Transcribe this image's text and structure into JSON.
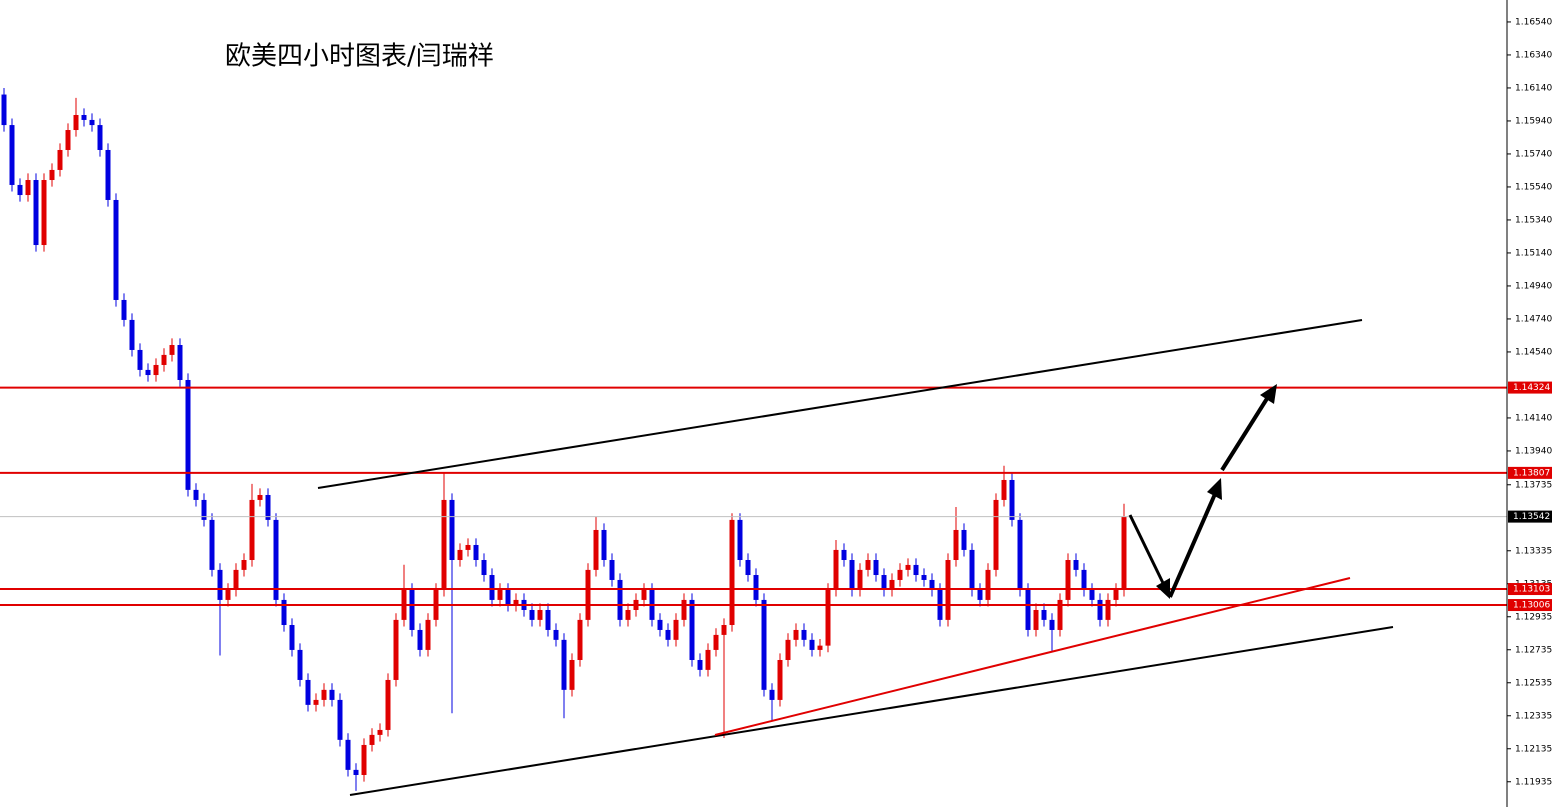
{
  "chart_data": {
    "type": "candlestick",
    "title": "欧美四小时图表/闫瑞祥",
    "ylim": [
      1.11782,
      1.16673
    ],
    "yticks": [
      {
        "value": 1.1654,
        "label": "1.16540"
      },
      {
        "value": 1.1634,
        "label": "1.16340"
      },
      {
        "value": 1.1614,
        "label": "1.16140"
      },
      {
        "value": 1.1594,
        "label": "1.15940"
      },
      {
        "value": 1.1574,
        "label": "1.15740"
      },
      {
        "value": 1.1554,
        "label": "1.15540"
      },
      {
        "value": 1.1534,
        "label": "1.15340"
      },
      {
        "value": 1.1514,
        "label": "1.15140"
      },
      {
        "value": 1.1494,
        "label": "1.14940"
      },
      {
        "value": 1.1474,
        "label": "1.14740"
      },
      {
        "value": 1.1454,
        "label": "1.14540"
      },
      {
        "value": 1.1414,
        "label": "1.14140"
      },
      {
        "value": 1.1394,
        "label": "1.13940"
      },
      {
        "value": 1.13735,
        "label": "1.13735"
      },
      {
        "value": 1.13335,
        "label": "1.13335"
      },
      {
        "value": 1.13135,
        "label": "1.13135"
      },
      {
        "value": 1.12935,
        "label": "1.12935"
      },
      {
        "value": 1.12735,
        "label": "1.12735"
      },
      {
        "value": 1.12535,
        "label": "1.12535"
      },
      {
        "value": 1.12335,
        "label": "1.12335"
      },
      {
        "value": 1.12135,
        "label": "1.12135"
      },
      {
        "value": 1.11935,
        "label": "1.11935"
      }
    ],
    "levels": [
      {
        "value": 1.14324,
        "label": "1.14324"
      },
      {
        "value": 1.13807,
        "label": "1.13807"
      },
      {
        "value": 1.13103,
        "label": "1.13103"
      },
      {
        "value": 1.13006,
        "label": "1.13006"
      }
    ],
    "level_color": "#e00000",
    "current_price": {
      "value": 1.13542,
      "label": "1.13542"
    },
    "series": [
      {
        "up_color": "#e00000",
        "down_color": "#0000e0",
        "candles": [
          [
            1.161,
            1.1614,
            1.15875,
            1.15915
          ],
          [
            1.15915,
            1.15955,
            1.15512,
            1.15552
          ],
          [
            1.15552,
            1.15592,
            1.15451,
            1.15491
          ],
          [
            1.15491,
            1.15622,
            1.15451,
            1.15582
          ],
          [
            1.15582,
            1.15622,
            1.15148,
            1.15188
          ],
          [
            1.15188,
            1.15622,
            1.15148,
            1.15582
          ],
          [
            1.15582,
            1.15683,
            1.15542,
            1.15643
          ],
          [
            1.15643,
            1.15804,
            1.15603,
            1.15764
          ],
          [
            1.15764,
            1.15925,
            1.15724,
            1.15885
          ],
          [
            1.15885,
            1.1608,
            1.15845,
            1.15976
          ],
          [
            1.15976,
            1.16016,
            1.15906,
            1.15946
          ],
          [
            1.15946,
            1.15986,
            1.15875,
            1.15915
          ],
          [
            1.15915,
            1.15955,
            1.15724,
            1.15764
          ],
          [
            1.15764,
            1.15804,
            1.15421,
            1.15461
          ],
          [
            1.15461,
            1.15501,
            1.14815,
            1.14855
          ],
          [
            1.14855,
            1.14895,
            1.14694,
            1.14734
          ],
          [
            1.14734,
            1.14774,
            1.14512,
            1.14552
          ],
          [
            1.14552,
            1.14592,
            1.14391,
            1.14431
          ],
          [
            1.14431,
            1.14471,
            1.1436,
            1.144
          ],
          [
            1.144,
            1.14501,
            1.1436,
            1.14461
          ],
          [
            1.14461,
            1.14562,
            1.14421,
            1.14522
          ],
          [
            1.14522,
            1.14622,
            1.14482,
            1.14582
          ],
          [
            1.14582,
            1.14622,
            1.1433,
            1.1437
          ],
          [
            1.1437,
            1.1441,
            1.13664,
            1.13704
          ],
          [
            1.13704,
            1.13744,
            1.13603,
            1.13643
          ],
          [
            1.13643,
            1.13683,
            1.13482,
            1.13522
          ],
          [
            1.13522,
            1.13562,
            1.13179,
            1.13219
          ],
          [
            1.13219,
            1.13259,
            1.127,
            1.13037
          ],
          [
            1.13037,
            1.13138,
            1.12997,
            1.13098
          ],
          [
            1.13098,
            1.13259,
            1.13058,
            1.13219
          ],
          [
            1.13219,
            1.13319,
            1.13179,
            1.13279
          ],
          [
            1.13279,
            1.1374,
            1.13239,
            1.13643
          ],
          [
            1.13643,
            1.13713,
            1.13603,
            1.13673
          ],
          [
            1.13673,
            1.13713,
            1.13482,
            1.13522
          ],
          [
            1.13522,
            1.13562,
            1.12997,
            1.13037
          ],
          [
            1.13037,
            1.13077,
            1.12845,
            1.12885
          ],
          [
            1.12885,
            1.12925,
            1.12694,
            1.12734
          ],
          [
            1.12734,
            1.12774,
            1.12512,
            1.12552
          ],
          [
            1.12552,
            1.12592,
            1.12361,
            1.12401
          ],
          [
            1.12401,
            1.12471,
            1.12361,
            1.12431
          ],
          [
            1.12431,
            1.12532,
            1.12391,
            1.12492
          ],
          [
            1.12492,
            1.12532,
            1.12391,
            1.12431
          ],
          [
            1.12431,
            1.12471,
            1.12149,
            1.12189
          ],
          [
            1.12189,
            1.12229,
            1.11967,
            1.12007
          ],
          [
            1.12007,
            1.12047,
            1.1188,
            1.11976
          ],
          [
            1.11976,
            1.12198,
            1.11936,
            1.12158
          ],
          [
            1.12158,
            1.12259,
            1.12118,
            1.12219
          ],
          [
            1.12219,
            1.12289,
            1.12179,
            1.12249
          ],
          [
            1.12249,
            1.12592,
            1.12209,
            1.12552
          ],
          [
            1.12552,
            1.12956,
            1.12512,
            1.12916
          ],
          [
            1.12916,
            1.1325,
            1.12876,
            1.13098
          ],
          [
            1.13098,
            1.13138,
            1.12815,
            1.12855
          ],
          [
            1.12855,
            1.12895,
            1.12694,
            1.12734
          ],
          [
            1.12734,
            1.12956,
            1.12694,
            1.12916
          ],
          [
            1.12916,
            1.13138,
            1.12876,
            1.13098
          ],
          [
            1.13098,
            1.13807,
            1.13058,
            1.13643
          ],
          [
            1.13643,
            1.13683,
            1.1235,
            1.13279
          ],
          [
            1.13279,
            1.1338,
            1.13239,
            1.1334
          ],
          [
            1.1334,
            1.1341,
            1.133,
            1.1337
          ],
          [
            1.1337,
            1.1341,
            1.13239,
            1.13279
          ],
          [
            1.13279,
            1.13319,
            1.13148,
            1.13188
          ],
          [
            1.13188,
            1.13228,
            1.12997,
            1.13037
          ],
          [
            1.13037,
            1.13138,
            1.12997,
            1.13098
          ],
          [
            1.13098,
            1.13138,
            1.12967,
            1.13007
          ],
          [
            1.13007,
            1.13077,
            1.12967,
            1.13037
          ],
          [
            1.13037,
            1.13077,
            1.12936,
            1.12976
          ],
          [
            1.12976,
            1.13016,
            1.12876,
            1.12916
          ],
          [
            1.12916,
            1.13016,
            1.12876,
            1.12976
          ],
          [
            1.12976,
            1.13016,
            1.12815,
            1.12855
          ],
          [
            1.12855,
            1.12895,
            1.12755,
            1.12795
          ],
          [
            1.12795,
            1.12835,
            1.1232,
            1.12492
          ],
          [
            1.12492,
            1.12713,
            1.12452,
            1.12673
          ],
          [
            1.12673,
            1.12956,
            1.12633,
            1.12916
          ],
          [
            1.12916,
            1.13259,
            1.12876,
            1.13219
          ],
          [
            1.13219,
            1.1354,
            1.13179,
            1.13461
          ],
          [
            1.13461,
            1.13501,
            1.13239,
            1.13279
          ],
          [
            1.13279,
            1.13319,
            1.13118,
            1.13158
          ],
          [
            1.13158,
            1.13198,
            1.12876,
            1.12916
          ],
          [
            1.12916,
            1.13016,
            1.12876,
            1.12976
          ],
          [
            1.12976,
            1.13077,
            1.12936,
            1.13037
          ],
          [
            1.13037,
            1.13138,
            1.12997,
            1.13098
          ],
          [
            1.13098,
            1.13138,
            1.12876,
            1.12916
          ],
          [
            1.12916,
            1.12956,
            1.12815,
            1.12855
          ],
          [
            1.12855,
            1.12895,
            1.12755,
            1.12795
          ],
          [
            1.12795,
            1.12956,
            1.12755,
            1.12916
          ],
          [
            1.12916,
            1.13077,
            1.12876,
            1.13037
          ],
          [
            1.13037,
            1.13077,
            1.12633,
            1.12673
          ],
          [
            1.12673,
            1.12713,
            1.12573,
            1.12613
          ],
          [
            1.12613,
            1.12774,
            1.12573,
            1.12734
          ],
          [
            1.12734,
            1.12865,
            1.12694,
            1.12825
          ],
          [
            1.12825,
            1.12925,
            1.122,
            1.12885
          ],
          [
            1.12885,
            1.13562,
            1.12845,
            1.13522
          ],
          [
            1.13522,
            1.13562,
            1.13239,
            1.13279
          ],
          [
            1.13279,
            1.13319,
            1.13148,
            1.13188
          ],
          [
            1.13188,
            1.13228,
            1.12997,
            1.13037
          ],
          [
            1.13037,
            1.13077,
            1.12452,
            1.12492
          ],
          [
            1.12492,
            1.12532,
            1.123,
            1.12431
          ],
          [
            1.12431,
            1.12713,
            1.12391,
            1.12673
          ],
          [
            1.12673,
            1.12835,
            1.12633,
            1.12795
          ],
          [
            1.12795,
            1.12895,
            1.12755,
            1.12855
          ],
          [
            1.12855,
            1.12895,
            1.12755,
            1.12795
          ],
          [
            1.12795,
            1.12835,
            1.12694,
            1.12734
          ],
          [
            1.12734,
            1.128,
            1.12694,
            1.1276
          ],
          [
            1.1276,
            1.13138,
            1.1272,
            1.13098
          ],
          [
            1.13098,
            1.134,
            1.13058,
            1.1334
          ],
          [
            1.1334,
            1.1338,
            1.13239,
            1.13279
          ],
          [
            1.13279,
            1.13319,
            1.13058,
            1.13098
          ],
          [
            1.13098,
            1.13259,
            1.13058,
            1.13219
          ],
          [
            1.13219,
            1.13319,
            1.13179,
            1.13279
          ],
          [
            1.13279,
            1.13319,
            1.13148,
            1.13188
          ],
          [
            1.13188,
            1.13228,
            1.13058,
            1.13098
          ],
          [
            1.13098,
            1.13198,
            1.13058,
            1.13158
          ],
          [
            1.13158,
            1.13259,
            1.13118,
            1.13219
          ],
          [
            1.13219,
            1.13289,
            1.13179,
            1.13249
          ],
          [
            1.13249,
            1.13289,
            1.13148,
            1.13188
          ],
          [
            1.13188,
            1.13228,
            1.13118,
            1.13158
          ],
          [
            1.13158,
            1.13198,
            1.13058,
            1.13098
          ],
          [
            1.13098,
            1.13138,
            1.12876,
            1.12916
          ],
          [
            1.12916,
            1.13319,
            1.12876,
            1.13279
          ],
          [
            1.13279,
            1.136,
            1.13239,
            1.13461
          ],
          [
            1.13461,
            1.13501,
            1.133,
            1.1334
          ],
          [
            1.1334,
            1.1338,
            1.13058,
            1.13098
          ],
          [
            1.13098,
            1.13138,
            1.12997,
            1.13037
          ],
          [
            1.13037,
            1.13259,
            1.12997,
            1.13219
          ],
          [
            1.13219,
            1.13683,
            1.13179,
            1.13643
          ],
          [
            1.13643,
            1.1385,
            1.13603,
            1.13764
          ],
          [
            1.13764,
            1.13804,
            1.13482,
            1.13522
          ],
          [
            1.13522,
            1.13562,
            1.13058,
            1.13098
          ],
          [
            1.13098,
            1.13138,
            1.12815,
            1.12855
          ],
          [
            1.12855,
            1.13016,
            1.12815,
            1.12976
          ],
          [
            1.12976,
            1.13016,
            1.12876,
            1.12916
          ],
          [
            1.12916,
            1.12956,
            1.1272,
            1.12855
          ],
          [
            1.12855,
            1.13077,
            1.12815,
            1.13037
          ],
          [
            1.13037,
            1.13319,
            1.12997,
            1.13279
          ],
          [
            1.13279,
            1.13319,
            1.13179,
            1.13219
          ],
          [
            1.13219,
            1.13259,
            1.13058,
            1.13098
          ],
          [
            1.13098,
            1.13138,
            1.12997,
            1.13037
          ],
          [
            1.13037,
            1.13077,
            1.12876,
            1.12916
          ],
          [
            1.12916,
            1.13077,
            1.12876,
            1.13037
          ],
          [
            1.13037,
            1.13138,
            1.12997,
            1.13098
          ],
          [
            1.13098,
            1.1362,
            1.13058,
            1.13542
          ]
        ]
      }
    ]
  }
}
